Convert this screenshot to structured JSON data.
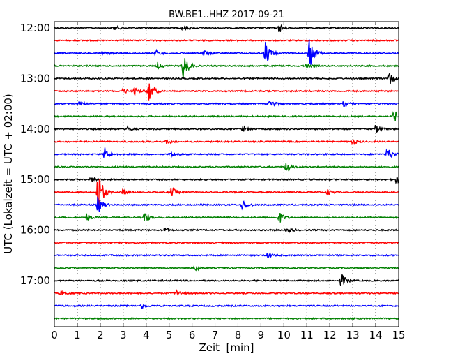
{
  "chart_data": {
    "type": "line",
    "title": "BW.BE1..HHZ 2017-09-21",
    "xlabel": "Zeit  [min]",
    "ylabel": "UTC (Lokalzeit = UTC + 02:00)",
    "xlim": [
      0,
      15
    ],
    "x_ticks": [
      "0",
      "1",
      "2",
      "3",
      "4",
      "5",
      "6",
      "7",
      "8",
      "9",
      "10",
      "11",
      "12",
      "13",
      "14",
      "15"
    ],
    "y_ticks": [
      "12:00",
      "13:00",
      "14:00",
      "15:00",
      "16:00",
      "17:00"
    ],
    "grid": true,
    "trace_colors": [
      "#000000",
      "#ff0000",
      "#0000ff",
      "#008000"
    ],
    "traces": [
      {
        "start": "12:00",
        "events": [
          [
            2.6,
            0.3
          ],
          [
            5.6,
            0.4
          ],
          [
            9.8,
            0.6
          ]
        ]
      },
      {
        "start": "12:15",
        "events": []
      },
      {
        "start": "12:30",
        "events": [
          [
            2.1,
            0.3
          ],
          [
            4.4,
            0.4
          ],
          [
            6.5,
            0.4
          ],
          [
            9.2,
            1.6
          ],
          [
            11.1,
            2.2
          ]
        ]
      },
      {
        "start": "12:45",
        "events": [
          [
            4.5,
            0.4
          ],
          [
            5.6,
            1.8
          ],
          [
            11.0,
            0.3
          ]
        ]
      },
      {
        "start": "13:00",
        "events": [
          [
            14.6,
            0.8
          ]
        ]
      },
      {
        "start": "13:15",
        "events": [
          [
            3.0,
            0.3
          ],
          [
            3.5,
            0.4
          ],
          [
            4.1,
            1.4
          ]
        ]
      },
      {
        "start": "13:30",
        "events": [
          [
            1.1,
            0.3
          ],
          [
            9.4,
            0.6
          ],
          [
            12.6,
            0.3
          ]
        ]
      },
      {
        "start": "13:45",
        "events": [
          [
            14.8,
            0.8
          ]
        ]
      },
      {
        "start": "14:00",
        "events": [
          [
            3.2,
            0.3
          ],
          [
            8.2,
            0.3
          ],
          [
            14.0,
            0.5
          ]
        ]
      },
      {
        "start": "14:15",
        "events": [
          [
            4.9,
            0.3
          ],
          [
            13.0,
            0.3
          ]
        ]
      },
      {
        "start": "14:30",
        "events": [
          [
            2.2,
            0.9
          ],
          [
            5.1,
            0.3
          ],
          [
            14.5,
            0.9
          ]
        ]
      },
      {
        "start": "14:45",
        "events": [
          [
            10.1,
            0.8
          ]
        ]
      },
      {
        "start": "15:00",
        "events": [
          [
            1.6,
            0.3
          ],
          [
            14.9,
            0.5
          ]
        ]
      },
      {
        "start": "15:15",
        "events": [
          [
            1.9,
            3.0
          ],
          [
            3.0,
            0.5
          ],
          [
            5.1,
            0.6
          ],
          [
            11.9,
            0.3
          ]
        ]
      },
      {
        "start": "15:30",
        "events": [
          [
            1.9,
            1.1
          ],
          [
            8.2,
            0.7
          ]
        ]
      },
      {
        "start": "15:45",
        "events": [
          [
            1.4,
            0.5
          ],
          [
            3.9,
            0.9
          ],
          [
            9.8,
            0.7
          ]
        ]
      },
      {
        "start": "16:00",
        "events": [
          [
            4.8,
            0.3
          ],
          [
            10.2,
            0.3
          ]
        ]
      },
      {
        "start": "16:15",
        "events": []
      },
      {
        "start": "16:30",
        "events": [
          [
            9.3,
            0.3
          ]
        ]
      },
      {
        "start": "16:45",
        "events": [
          [
            6.1,
            0.4
          ]
        ]
      },
      {
        "start": "17:00",
        "events": [
          [
            12.5,
            0.8
          ]
        ]
      },
      {
        "start": "17:15",
        "events": [
          [
            0.3,
            0.3
          ],
          [
            5.3,
            0.4
          ]
        ]
      },
      {
        "start": "17:30",
        "events": [
          [
            3.8,
            0.3
          ]
        ]
      },
      {
        "start": "17:45",
        "events": []
      }
    ]
  }
}
